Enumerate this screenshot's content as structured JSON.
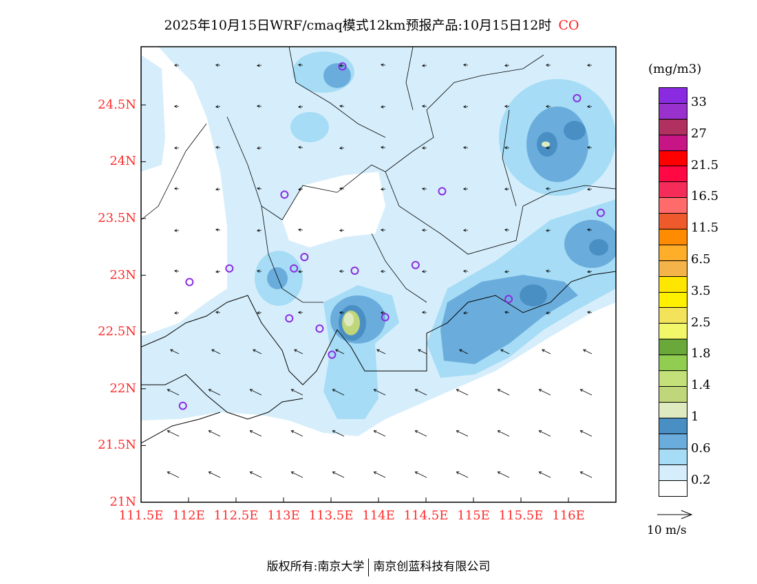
{
  "title": {
    "main": "2025年10月15日WRF/cmaq模式12km预报产品:10月15日12时",
    "species": "CO"
  },
  "lat_ticks": [
    "24.5N",
    "24N",
    "23.5N",
    "23N",
    "22.5N",
    "22N",
    "21.5N",
    "21N"
  ],
  "lon_ticks": [
    "111.5E",
    "112E",
    "112.5E",
    "113E",
    "113.5E",
    "114E",
    "114.5E",
    "115E",
    "115.5E",
    "116E"
  ],
  "colorbar": {
    "unit": "(mg/m3)",
    "colors": [
      "#8a2be2",
      "#9932cc",
      "#b03060",
      "#c71585",
      "#ff0000",
      "#ff0844",
      "#f52c5a",
      "#ff6a6a",
      "#ef5a2c",
      "#ff8c00",
      "#ffae2a",
      "#f5b44a",
      "#ffe600",
      "#fff000",
      "#f2e35a",
      "#f2f76a",
      "#6aa83a",
      "#90cd50",
      "#c3e07a",
      "#c0d67a",
      "#e0eac0",
      "#4a8fc4",
      "#6aaddc",
      "#a6dcf5",
      "#d6eefb",
      "#ffffff"
    ],
    "labels": [
      "33",
      "27",
      "21.5",
      "16.5",
      "11.5",
      "6.5",
      "3.5",
      "2.5",
      "1.8",
      "1.4",
      "1",
      "0.6",
      "0.2"
    ]
  },
  "wind_reference": "10 m/s",
  "stations": [
    [
      113.62,
      24.84
    ],
    [
      116.09,
      24.56
    ],
    [
      113.01,
      23.71
    ],
    [
      114.67,
      23.74
    ],
    [
      116.34,
      23.55
    ],
    [
      112.43,
      23.06
    ],
    [
      113.22,
      23.16
    ],
    [
      113.11,
      23.06
    ],
    [
      113.75,
      23.04
    ],
    [
      114.39,
      23.09
    ],
    [
      112.01,
      22.94
    ],
    [
      115.37,
      22.79
    ],
    [
      113.06,
      22.62
    ],
    [
      114.07,
      22.63
    ],
    [
      113.38,
      22.53
    ],
    [
      113.51,
      22.3
    ],
    [
      111.94,
      21.85
    ]
  ],
  "footer": {
    "left": "版权所有:南京大学",
    "right": "南京创蓝科技有限公司"
  }
}
